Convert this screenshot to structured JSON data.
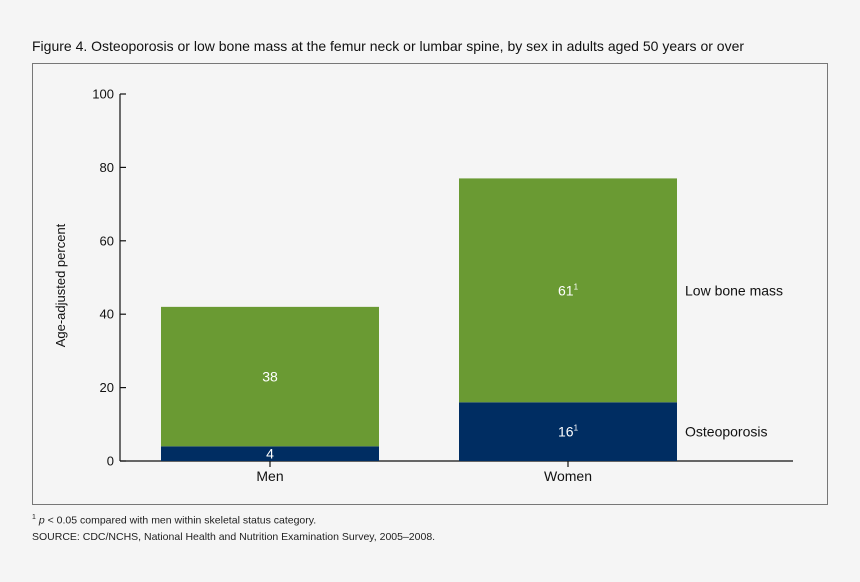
{
  "figure": {
    "title": "Figure 4. Osteoporosis or low bone mass at the femur neck or lumbar spine, by sex in adults aged 50 years or over",
    "footnote_mark": "1",
    "footnote_p": "p",
    "footnote_text": " < 0.05 compared with men within skeletal status category.",
    "source": "SOURCE: CDC/NCHS, National Health and Nutrition Examination Survey, 2005–2008."
  },
  "chart_data": {
    "type": "bar",
    "stacked": true,
    "categories": [
      "Men",
      "Women"
    ],
    "series": [
      {
        "name": "Osteoporosis",
        "values": [
          4,
          16
        ],
        "labels": [
          "4",
          "16"
        ],
        "sup": [
          "",
          "1"
        ],
        "color": "#002d62"
      },
      {
        "name": "Low bone mass",
        "values": [
          38,
          61
        ],
        "labels": [
          "38",
          "61"
        ],
        "sup": [
          "",
          "1"
        ],
        "color": "#6a9a33"
      }
    ],
    "ylabel": "Age-adjusted percent",
    "xlabel": "",
    "ylim": [
      0,
      100
    ],
    "yticks": [
      0,
      20,
      40,
      60,
      80,
      100
    ],
    "grid": false,
    "legend": "right, inline labels beside Women bar"
  }
}
